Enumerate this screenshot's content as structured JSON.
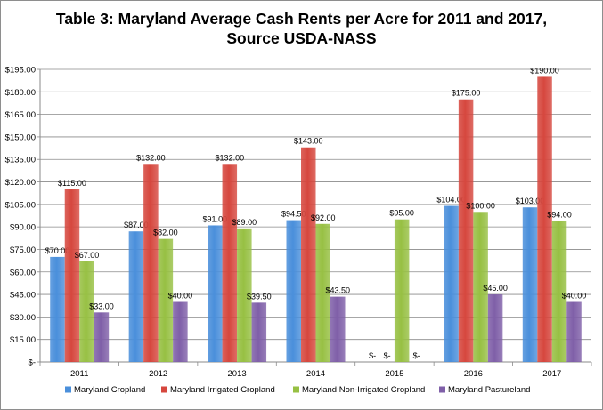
{
  "chart_data": {
    "type": "bar",
    "title_line1": "Table 3: Maryland Average Cash Rents per Acre for 2011 and 2017,",
    "title_line2": "Source USDA-NASS",
    "categories": [
      "2011",
      "2012",
      "2013",
      "2014",
      "2015",
      "2016",
      "2017"
    ],
    "ylim": [
      0,
      195
    ],
    "yticks": [
      0,
      15,
      30,
      45,
      60,
      75,
      90,
      105,
      120,
      135,
      150,
      165,
      180,
      195
    ],
    "ytick_labels": [
      "$-",
      "$15.00",
      "$30.00",
      "$45.00",
      "$60.00",
      "$75.00",
      "$90.00",
      "$105.00",
      "$120.00",
      "$135.00",
      "$150.00",
      "$165.00",
      "$180.00",
      "$195.00"
    ],
    "grid": true,
    "legend_position": "bottom",
    "series": [
      {
        "name": "Maryland Cropland",
        "color": "#4a8fdb",
        "values": [
          70,
          87,
          91,
          94.5,
          0,
          104,
          103
        ],
        "labels": [
          "$70.00",
          "$87.00",
          "$91.00",
          "$94.50",
          "$-",
          "$104.00",
          "$103.00"
        ]
      },
      {
        "name": "Maryland Irrigated Cropland",
        "color": "#d6473e",
        "values": [
          115,
          132,
          132,
          143,
          0,
          175,
          190
        ],
        "labels": [
          "$115.00",
          "$132.00",
          "$132.00",
          "$143.00",
          "$-",
          "$175.00",
          "$190.00"
        ]
      },
      {
        "name": "Maryland Non-Irrigated Cropland",
        "color": "#97c043",
        "values": [
          67,
          82,
          89,
          92,
          95,
          100,
          94
        ],
        "labels": [
          "$67.00",
          "$82.00",
          "$89.00",
          "$92.00",
          "$95.00",
          "$100.00",
          "$94.00"
        ]
      },
      {
        "name": "Maryland Pastureland",
        "color": "#7f5fa8",
        "values": [
          33,
          40,
          39.5,
          43.5,
          0,
          45,
          40
        ],
        "labels": [
          "$33.00",
          "$40.00",
          "$39.50",
          "$43.50",
          "$-",
          "$45.00",
          "$40.00"
        ]
      }
    ]
  }
}
